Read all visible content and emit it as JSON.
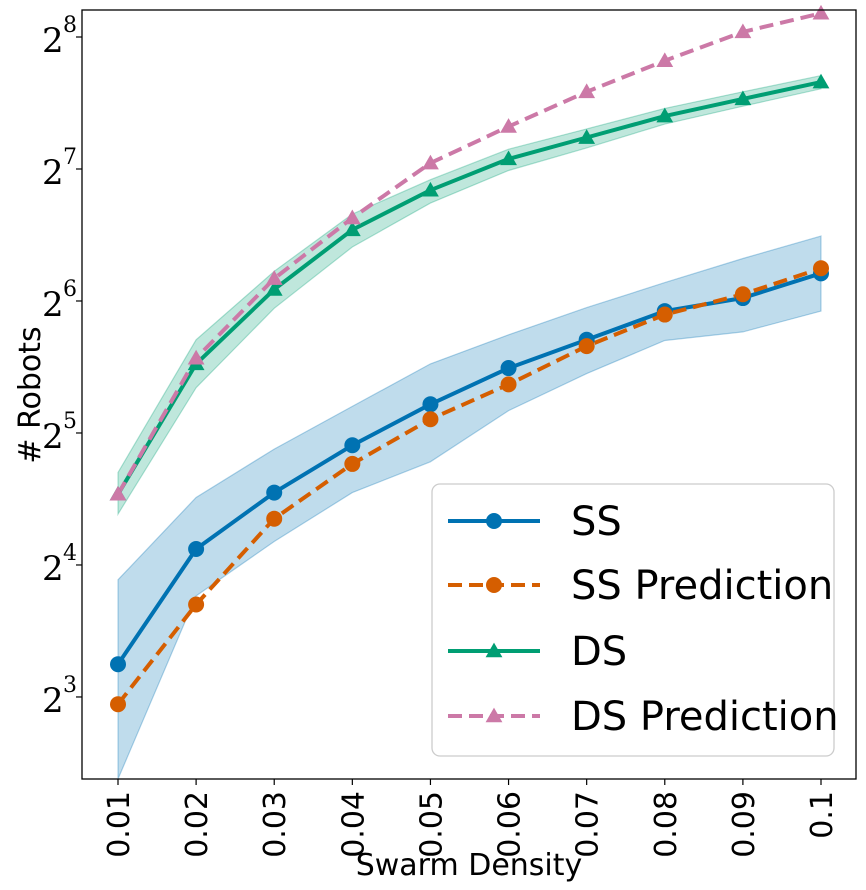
{
  "chart_data": {
    "type": "line",
    "xlabel": "Swarm Density",
    "ylabel": "# Robots",
    "y_scale": "log2",
    "ylim": [
      5.2,
      295
    ],
    "x": [
      0.01,
      0.02,
      0.03,
      0.04,
      0.05,
      0.06,
      0.07,
      0.08,
      0.09,
      0.1
    ],
    "x_tick_labels": [
      "0.01",
      "0.02",
      "0.03",
      "0.04",
      "0.05",
      "0.06",
      "0.07",
      "0.08",
      "0.09",
      "0.1"
    ],
    "y_ticks": [
      {
        "base": "2",
        "exp": "3"
      },
      {
        "base": "2",
        "exp": "4"
      },
      {
        "base": "2",
        "exp": "5"
      },
      {
        "base": "2",
        "exp": "6"
      },
      {
        "base": "2",
        "exp": "7"
      },
      {
        "base": "2",
        "exp": "8"
      }
    ],
    "y_tick_values": [
      8,
      16,
      32,
      64,
      128,
      256
    ],
    "legend_position": "lower-right",
    "grid": false,
    "series": [
      {
        "name": "SS",
        "color": "#0072b2",
        "style": "solid",
        "marker": "circle",
        "values": [
          9.5,
          17.4,
          23.4,
          30.0,
          37.2,
          45.0,
          52.2,
          60.7,
          65.0,
          74.0
        ],
        "band_low": [
          5.2,
          13.6,
          18.1,
          23.4,
          27.5,
          36.0,
          43.7,
          52.0,
          54.4,
          60.7
        ],
        "band_high": [
          14.8,
          22.8,
          29.4,
          36.8,
          46.0,
          53.6,
          61.8,
          70.5,
          80.0,
          90.0
        ]
      },
      {
        "name": "SS Prediction",
        "color": "#d55e00",
        "style": "dashed",
        "marker": "circle",
        "values": [
          7.7,
          13.0,
          20.4,
          27.2,
          34.4,
          41.3,
          50.5,
          59.6,
          66.3,
          76.0
        ]
      },
      {
        "name": "DS",
        "color": "#009e73",
        "style": "solid",
        "marker": "triangle",
        "values": [
          23.2,
          46.0,
          68.0,
          93.0,
          114.5,
          135.0,
          151.0,
          169.0,
          185.0,
          202.0
        ],
        "band_low": [
          20.9,
          40.6,
          61.6,
          85.0,
          107.0,
          127.0,
          143.0,
          162.0,
          178.0,
          195.0
        ],
        "band_high": [
          26.0,
          52.2,
          74.8,
          101.0,
          121.0,
          142.0,
          158.0,
          176.0,
          192.0,
          209.0
        ]
      },
      {
        "name": "DS Prediction",
        "color": "#cc79a7",
        "style": "dashed",
        "marker": "triangle",
        "values": [
          23.2,
          47.4,
          72.0,
          99.0,
          132.0,
          160.0,
          192.0,
          226.0,
          263.0,
          290.0
        ]
      }
    ]
  }
}
